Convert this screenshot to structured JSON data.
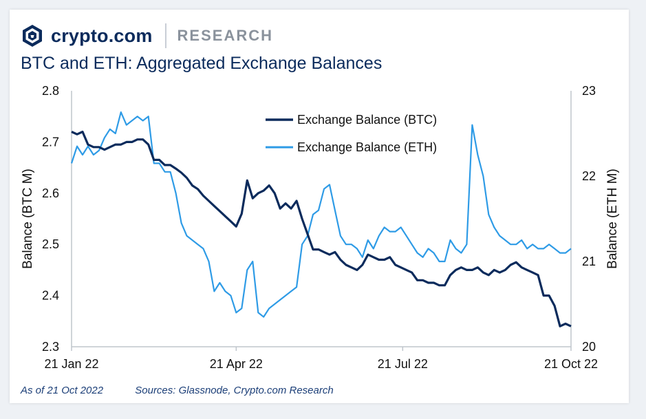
{
  "brand": {
    "name": "crypto.com",
    "section": "RESEARCH"
  },
  "title": "BTC and ETH: Aggregated Exchange Balances",
  "footer": {
    "as_of": "As of 21 Oct 2022",
    "sources": "Sources: Glassnode, Crypto.com Research"
  },
  "colors": {
    "btc": "#0b2b5c",
    "eth": "#2e9be6",
    "axis": "#bfc5cc",
    "text": "#111111"
  },
  "chart_data": {
    "type": "line",
    "xlabel": "",
    "ylabel": "Balance (BTC M)",
    "y2label": "Balance (ETH M)",
    "ylim": [
      2.3,
      2.8
    ],
    "y2lim": [
      20,
      23
    ],
    "yticks": [
      "2.3",
      "2.4",
      "2.5",
      "2.6",
      "2.7",
      "2.8"
    ],
    "y2ticks": [
      "20",
      "21",
      "22",
      "23"
    ],
    "x_range": [
      "2022-01-21",
      "2022-10-21"
    ],
    "xticks": [
      {
        "label": "21 Jan 22",
        "date": "2022-01-21"
      },
      {
        "label": "21 Apr 22",
        "date": "2022-04-21"
      },
      {
        "label": "21 Jul 22",
        "date": "2022-07-21"
      },
      {
        "label": "21 Oct 22",
        "date": "2022-10-21"
      }
    ],
    "grid": false,
    "legend_position": "top-center",
    "series": [
      {
        "name": "Exchange Balance (BTC)",
        "axis": "left",
        "x": [
          "2022-01-21",
          "2022-01-24",
          "2022-01-27",
          "2022-01-30",
          "2022-02-02",
          "2022-02-05",
          "2022-02-08",
          "2022-02-11",
          "2022-02-14",
          "2022-02-17",
          "2022-02-20",
          "2022-02-23",
          "2022-02-26",
          "2022-03-01",
          "2022-03-04",
          "2022-03-07",
          "2022-03-10",
          "2022-03-13",
          "2022-03-16",
          "2022-03-19",
          "2022-03-22",
          "2022-03-25",
          "2022-03-28",
          "2022-03-31",
          "2022-04-03",
          "2022-04-06",
          "2022-04-09",
          "2022-04-12",
          "2022-04-15",
          "2022-04-18",
          "2022-04-21",
          "2022-04-24",
          "2022-04-27",
          "2022-04-30",
          "2022-05-03",
          "2022-05-06",
          "2022-05-09",
          "2022-05-12",
          "2022-05-15",
          "2022-05-18",
          "2022-05-21",
          "2022-05-24",
          "2022-05-27",
          "2022-05-30",
          "2022-06-02",
          "2022-06-05",
          "2022-06-08",
          "2022-06-11",
          "2022-06-14",
          "2022-06-17",
          "2022-06-20",
          "2022-06-23",
          "2022-06-26",
          "2022-06-29",
          "2022-07-02",
          "2022-07-05",
          "2022-07-08",
          "2022-07-11",
          "2022-07-14",
          "2022-07-17",
          "2022-07-20",
          "2022-07-23",
          "2022-07-26",
          "2022-07-29",
          "2022-08-01",
          "2022-08-04",
          "2022-08-07",
          "2022-08-10",
          "2022-08-13",
          "2022-08-16",
          "2022-08-19",
          "2022-08-22",
          "2022-08-25",
          "2022-08-28",
          "2022-08-31",
          "2022-09-03",
          "2022-09-06",
          "2022-09-09",
          "2022-09-12",
          "2022-09-15",
          "2022-09-18",
          "2022-09-21",
          "2022-09-24",
          "2022-09-27",
          "2022-09-30",
          "2022-10-03",
          "2022-10-06",
          "2022-10-09",
          "2022-10-12",
          "2022-10-15",
          "2022-10-18",
          "2022-10-21"
        ],
        "values": [
          2.72,
          2.715,
          2.72,
          2.695,
          2.69,
          2.69,
          2.685,
          2.69,
          2.695,
          2.695,
          2.7,
          2.7,
          2.705,
          2.705,
          2.695,
          2.665,
          2.665,
          2.655,
          2.655,
          2.648,
          2.64,
          2.63,
          2.615,
          2.608,
          2.595,
          2.585,
          2.575,
          2.565,
          2.555,
          2.545,
          2.535,
          2.56,
          2.625,
          2.59,
          2.6,
          2.605,
          2.615,
          2.6,
          2.57,
          2.58,
          2.57,
          2.585,
          2.55,
          2.52,
          2.49,
          2.49,
          2.485,
          2.48,
          2.485,
          2.47,
          2.46,
          2.455,
          2.45,
          2.46,
          2.48,
          2.475,
          2.47,
          2.47,
          2.475,
          2.46,
          2.455,
          2.45,
          2.445,
          2.43,
          2.43,
          2.425,
          2.425,
          2.42,
          2.42,
          2.44,
          2.45,
          2.455,
          2.45,
          2.45,
          2.455,
          2.445,
          2.44,
          2.45,
          2.445,
          2.45,
          2.46,
          2.465,
          2.455,
          2.45,
          2.445,
          2.44,
          2.4,
          2.4,
          2.38,
          2.34,
          2.345,
          2.34
        ]
      },
      {
        "name": "Exchange Balance (ETH)",
        "axis": "right",
        "x": [
          "2022-01-21",
          "2022-01-24",
          "2022-01-27",
          "2022-01-30",
          "2022-02-02",
          "2022-02-05",
          "2022-02-08",
          "2022-02-11",
          "2022-02-14",
          "2022-02-17",
          "2022-02-20",
          "2022-02-23",
          "2022-02-26",
          "2022-03-01",
          "2022-03-04",
          "2022-03-07",
          "2022-03-10",
          "2022-03-13",
          "2022-03-16",
          "2022-03-19",
          "2022-03-22",
          "2022-03-25",
          "2022-03-28",
          "2022-03-31",
          "2022-04-03",
          "2022-04-06",
          "2022-04-09",
          "2022-04-12",
          "2022-04-15",
          "2022-04-18",
          "2022-04-21",
          "2022-04-24",
          "2022-04-27",
          "2022-04-30",
          "2022-05-03",
          "2022-05-06",
          "2022-05-09",
          "2022-05-12",
          "2022-05-15",
          "2022-05-18",
          "2022-05-21",
          "2022-05-24",
          "2022-05-27",
          "2022-05-30",
          "2022-06-02",
          "2022-06-05",
          "2022-06-08",
          "2022-06-11",
          "2022-06-14",
          "2022-06-17",
          "2022-06-20",
          "2022-06-23",
          "2022-06-26",
          "2022-06-29",
          "2022-07-02",
          "2022-07-05",
          "2022-07-08",
          "2022-07-11",
          "2022-07-14",
          "2022-07-17",
          "2022-07-20",
          "2022-07-23",
          "2022-07-26",
          "2022-07-29",
          "2022-08-01",
          "2022-08-04",
          "2022-08-07",
          "2022-08-10",
          "2022-08-13",
          "2022-08-16",
          "2022-08-19",
          "2022-08-22",
          "2022-08-25",
          "2022-08-28",
          "2022-08-31",
          "2022-09-03",
          "2022-09-06",
          "2022-09-09",
          "2022-09-12",
          "2022-09-15",
          "2022-09-18",
          "2022-09-21",
          "2022-09-24",
          "2022-09-27",
          "2022-09-30",
          "2022-10-03",
          "2022-10-06",
          "2022-10-09",
          "2022-10-12",
          "2022-10-15",
          "2022-10-18",
          "2022-10-21"
        ],
        "values": [
          22.15,
          22.35,
          22.25,
          22.35,
          22.25,
          22.3,
          22.45,
          22.55,
          22.5,
          22.75,
          22.6,
          22.65,
          22.7,
          22.65,
          22.7,
          22.15,
          22.15,
          22.05,
          22.05,
          21.8,
          21.45,
          21.3,
          21.25,
          21.2,
          21.15,
          21.0,
          20.65,
          20.75,
          20.65,
          20.6,
          20.4,
          20.45,
          20.9,
          21.0,
          20.4,
          20.35,
          20.45,
          20.5,
          20.55,
          20.6,
          20.65,
          20.7,
          21.2,
          21.3,
          21.55,
          21.6,
          21.85,
          21.9,
          21.6,
          21.3,
          21.2,
          21.2,
          21.15,
          21.05,
          21.25,
          21.15,
          21.3,
          21.4,
          21.35,
          21.35,
          21.4,
          21.3,
          21.2,
          21.1,
          21.05,
          21.15,
          21.1,
          21.0,
          21.0,
          21.25,
          21.15,
          21.1,
          21.2,
          22.6,
          22.25,
          22.0,
          21.55,
          21.4,
          21.3,
          21.25,
          21.2,
          21.2,
          21.25,
          21.15,
          21.2,
          21.15,
          21.15,
          21.2,
          21.15,
          21.1,
          21.1,
          21.15
        ]
      }
    ]
  }
}
